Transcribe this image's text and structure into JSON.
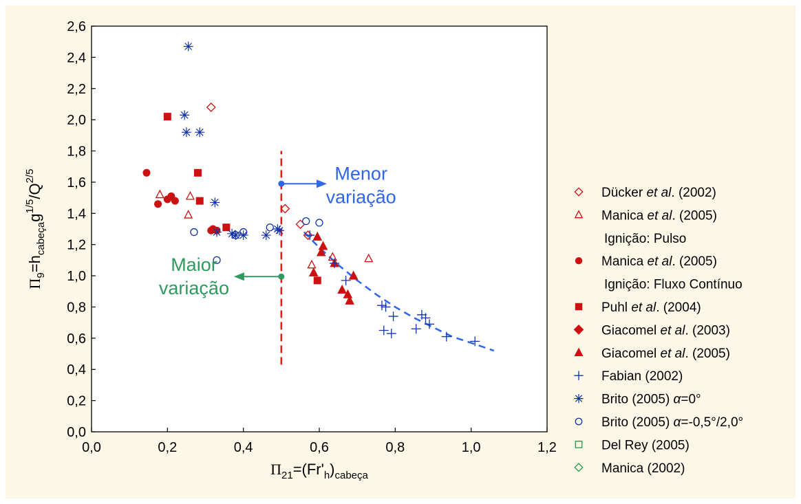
{
  "chart_data": {
    "type": "scatter",
    "title": "",
    "xlabel": {
      "prefix": "Π",
      "sub1": "21",
      "mid": "=(Fr'",
      "sub2": "h",
      "close": ")",
      "sub3": "cabeça"
    },
    "ylabel": {
      "prefix": "Π",
      "sub1": "9",
      "mid": "=h",
      "sub2": "cabeça",
      "g": "g",
      "sup1": "1/5",
      "slash": "/Q",
      "sup2": "2/5"
    },
    "xlim": [
      0.0,
      1.2
    ],
    "ylim": [
      0.0,
      2.6
    ],
    "xticks": [
      "0,0",
      "0,2",
      "0,4",
      "0,6",
      "0,8",
      "1,0",
      "1,2"
    ],
    "yticks": [
      "0,0",
      "0,2",
      "0,4",
      "0,6",
      "0,8",
      "1,0",
      "1,2",
      "1,4",
      "1,6",
      "1,8",
      "2,0",
      "2,2",
      "2,4",
      "2,6"
    ],
    "grid": false,
    "legend_position": "right",
    "series": [
      {
        "key": "ducker",
        "marker": "diamond-open",
        "color": "#cc1111",
        "label": {
          "pre": "Dücker ",
          "it": "et al",
          "post": ". (2002)"
        },
        "points": [
          [
            0.315,
            2.08
          ],
          [
            0.51,
            1.43
          ],
          [
            0.55,
            1.33
          ],
          [
            0.57,
            1.26
          ]
        ]
      },
      {
        "key": "manica_pulso",
        "marker": "triangle-open",
        "color": "#cc1111",
        "label": {
          "pre": "Manica ",
          "it": "et al",
          "post": ". (2005)"
        },
        "sublabel": "Ignição: Pulso",
        "points": [
          [
            0.18,
            1.52
          ],
          [
            0.255,
            1.39
          ],
          [
            0.26,
            1.51
          ],
          [
            0.58,
            1.07
          ],
          [
            0.635,
            1.12
          ],
          [
            0.73,
            1.11
          ]
        ]
      },
      {
        "key": "manica_fluxo",
        "marker": "circle-filled",
        "color": "#cc1111",
        "label": {
          "pre": "Manica ",
          "it": "et al",
          "post": ". (2005)"
        },
        "sublabel": "Ignição: Fluxo Contínuo",
        "points": [
          [
            0.145,
            1.66
          ],
          [
            0.175,
            1.46
          ],
          [
            0.2,
            1.49
          ],
          [
            0.21,
            1.51
          ],
          [
            0.22,
            1.48
          ],
          [
            0.315,
            1.29
          ],
          [
            0.32,
            1.3
          ],
          [
            0.33,
            1.29
          ]
        ]
      },
      {
        "key": "puhl",
        "marker": "square-filled",
        "color": "#cc1111",
        "label": {
          "pre": "Puhl ",
          "it": "et al",
          "post": ". (2004)"
        },
        "points": [
          [
            0.2,
            2.02
          ],
          [
            0.28,
            1.66
          ],
          [
            0.285,
            1.48
          ],
          [
            0.355,
            1.31
          ],
          [
            0.595,
            0.97
          ]
        ]
      },
      {
        "key": "giacomel2003",
        "marker": "diamond-filled",
        "color": "#cc1111",
        "label": {
          "pre": "Giacomel ",
          "it": "et al",
          "post": ". (2003)"
        },
        "points": []
      },
      {
        "key": "giacomel2005",
        "marker": "triangle-filled",
        "color": "#cc1111",
        "label": {
          "pre": "Giacomel ",
          "it": "et al",
          "post": ". (2005)"
        },
        "points": [
          [
            0.585,
            1.02
          ],
          [
            0.595,
            1.25
          ],
          [
            0.605,
            1.15
          ],
          [
            0.61,
            1.19
          ],
          [
            0.64,
            1.08
          ],
          [
            0.66,
            0.91
          ],
          [
            0.675,
            0.88
          ],
          [
            0.68,
            0.84
          ],
          [
            0.69,
            1.0
          ]
        ]
      },
      {
        "key": "fabian",
        "marker": "plus",
        "color": "#1133aa",
        "label": {
          "pre": "Fabian (2002)",
          "it": "",
          "post": ""
        },
        "points": [
          [
            0.575,
            1.26
          ],
          [
            0.64,
            1.08
          ],
          [
            0.67,
            0.97
          ],
          [
            0.765,
            0.81
          ],
          [
            0.775,
            0.8
          ],
          [
            0.77,
            0.65
          ],
          [
            0.795,
            0.74
          ],
          [
            0.79,
            0.63
          ],
          [
            0.855,
            0.66
          ],
          [
            0.87,
            0.75
          ],
          [
            0.88,
            0.73
          ],
          [
            0.89,
            0.69
          ],
          [
            0.935,
            0.61
          ],
          [
            1.01,
            0.58
          ]
        ]
      },
      {
        "key": "brito0",
        "marker": "asterisk",
        "color": "#1133aa",
        "label": {
          "pre": "Brito (2005) ",
          "it": "α",
          "post": "=0°"
        },
        "points": [
          [
            0.255,
            2.47
          ],
          [
            0.245,
            2.03
          ],
          [
            0.25,
            1.92
          ],
          [
            0.285,
            1.92
          ],
          [
            0.325,
            1.47
          ],
          [
            0.33,
            1.28
          ],
          [
            0.37,
            1.27
          ],
          [
            0.38,
            1.26
          ],
          [
            0.4,
            1.26
          ],
          [
            0.46,
            1.26
          ],
          [
            0.49,
            1.3
          ],
          [
            0.495,
            1.29
          ]
        ]
      },
      {
        "key": "brito05",
        "marker": "circle-open",
        "color": "#1133aa",
        "label": {
          "pre": "Brito (2005) ",
          "it": "α",
          "post": "=-0,5°/2,0°"
        },
        "points": [
          [
            0.27,
            1.28
          ],
          [
            0.33,
            1.1
          ],
          [
            0.38,
            1.26
          ],
          [
            0.4,
            1.28
          ],
          [
            0.47,
            1.31
          ],
          [
            0.565,
            1.35
          ],
          [
            0.6,
            1.34
          ]
        ]
      },
      {
        "key": "delrey",
        "marker": "square-open",
        "color": "#229944",
        "label": {
          "pre": "Del Rey (2005)",
          "it": "",
          "post": ""
        },
        "points": []
      },
      {
        "key": "manica2002",
        "marker": "diamond-open",
        "color": "#229944",
        "label": {
          "pre": "Manica (2002)",
          "it": "",
          "post": ""
        },
        "points": []
      }
    ],
    "fit_curve": {
      "color": "#2f66e8",
      "points": [
        [
          0.56,
          1.28
        ],
        [
          0.6,
          1.18
        ],
        [
          0.65,
          1.07
        ],
        [
          0.7,
          0.97
        ],
        [
          0.75,
          0.88
        ],
        [
          0.8,
          0.8
        ],
        [
          0.85,
          0.73
        ],
        [
          0.9,
          0.67
        ],
        [
          0.95,
          0.61
        ],
        [
          1.0,
          0.57
        ],
        [
          1.06,
          0.52
        ]
      ]
    },
    "divider": {
      "x": 0.5,
      "y_from": 0.43,
      "y_to": 1.8,
      "color": "#e02020"
    },
    "annotations": [
      {
        "key": "menor",
        "lines": [
          "Menor",
          "variação"
        ],
        "color": "#2f66e8",
        "arrow_from": [
          0.5,
          1.59
        ],
        "arrow_to": [
          0.62,
          1.59
        ],
        "text_at": [
          0.71,
          1.58
        ]
      },
      {
        "key": "maior",
        "lines": [
          "Maior",
          "variação"
        ],
        "color": "#2e9a5e",
        "arrow_from": [
          0.5,
          0.995
        ],
        "arrow_to": [
          0.375,
          0.995
        ],
        "text_at": [
          0.27,
          0.995
        ]
      }
    ]
  }
}
